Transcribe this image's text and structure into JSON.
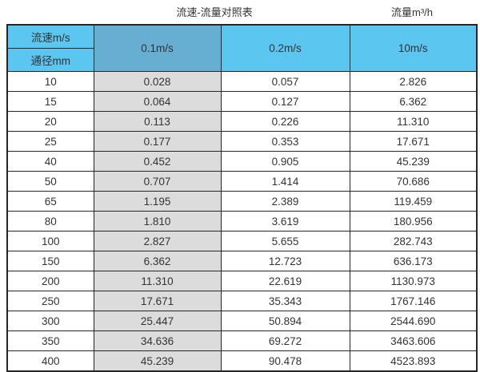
{
  "page": {
    "title_left": "流速-流量对照表",
    "title_right": "流量m³/h"
  },
  "table": {
    "corner": {
      "top": "流速m/s",
      "bottom": "通径mm"
    },
    "columns": [
      "0.1m/s",
      "0.2m/s",
      "10m/s"
    ],
    "rows": [
      {
        "diameter": "10",
        "values": [
          "0.028",
          "0.057",
          "2.826"
        ]
      },
      {
        "diameter": "15",
        "values": [
          "0.064",
          "0.127",
          "6.362"
        ]
      },
      {
        "diameter": "20",
        "values": [
          "0.113",
          "0.226",
          "11.310"
        ]
      },
      {
        "diameter": "25",
        "values": [
          "0.177",
          "0.353",
          "17.671"
        ]
      },
      {
        "diameter": "40",
        "values": [
          "0.452",
          "0.905",
          "45.239"
        ]
      },
      {
        "diameter": "50",
        "values": [
          "0.707",
          "1.414",
          "70.686"
        ]
      },
      {
        "diameter": "65",
        "values": [
          "1.195",
          "2.389",
          "119.459"
        ]
      },
      {
        "diameter": "80",
        "values": [
          "1.810",
          "3.619",
          "180.956"
        ]
      },
      {
        "diameter": "100",
        "values": [
          "2.827",
          "5.655",
          "282.743"
        ]
      },
      {
        "diameter": "150",
        "values": [
          "6.362",
          "12.723",
          "636.173"
        ]
      },
      {
        "diameter": "200",
        "values": [
          "11.310",
          "22.619",
          "1130.973"
        ]
      },
      {
        "diameter": "250",
        "values": [
          "17.671",
          "35.343",
          "1767.146"
        ]
      },
      {
        "diameter": "300",
        "values": [
          "25.447",
          "50.894",
          "2544.690"
        ]
      },
      {
        "diameter": "350",
        "values": [
          "34.636",
          "69.272",
          "3463.606"
        ]
      },
      {
        "diameter": "400",
        "values": [
          "45.239",
          "90.478",
          "4523.893"
        ]
      }
    ]
  },
  "colors": {
    "header_blue": "#5bc6f0",
    "header_blue_dark": "#66aed2",
    "highlight_gray": "#dcdcdc",
    "grid_line": "#262626",
    "text": "#333333"
  },
  "chart_data": {
    "type": "table",
    "title": "流速-流量对照表",
    "unit_label": "流量m³/h",
    "row_header": "通径mm",
    "column_header": "流速m/s",
    "categories": [
      10,
      15,
      20,
      25,
      40,
      50,
      65,
      80,
      100,
      150,
      200,
      250,
      300,
      350,
      400
    ],
    "series": [
      {
        "name": "0.1m/s",
        "values": [
          0.028,
          0.064,
          0.113,
          0.177,
          0.452,
          0.707,
          1.195,
          1.81,
          2.827,
          6.362,
          11.31,
          17.671,
          25.447,
          34.636,
          45.239
        ]
      },
      {
        "name": "0.2m/s",
        "values": [
          0.057,
          0.127,
          0.226,
          0.353,
          0.905,
          1.414,
          2.389,
          3.619,
          5.655,
          12.723,
          22.619,
          35.343,
          50.894,
          69.272,
          90.478
        ]
      },
      {
        "name": "10m/s",
        "values": [
          2.826,
          6.362,
          11.31,
          17.671,
          45.239,
          70.686,
          119.459,
          180.956,
          282.743,
          636.173,
          1130.973,
          1767.146,
          2544.69,
          3463.606,
          4523.893
        ]
      }
    ]
  }
}
